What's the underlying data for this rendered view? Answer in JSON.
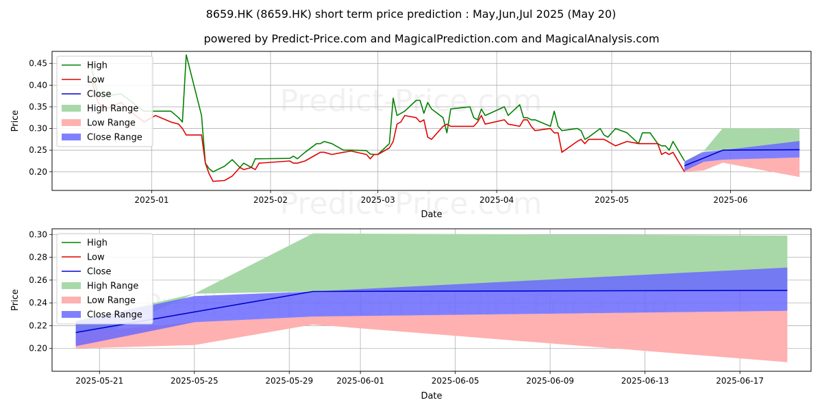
{
  "title": "8659.HK (8659.HK) short term price prediction : May,Jun,Jul 2025 (May 20)",
  "subtitle": "powered by Predict-Price.com and MagicalPrediction.com and MagicalAnalysis.com",
  "watermark": "Predict-Price.com",
  "colors": {
    "high": "#008000",
    "low": "#e00000",
    "close": "#0000cc",
    "high_range": "#a8d8a8",
    "low_range": "#ffb0b0",
    "close_range": "#6a6aff",
    "grid": "#b0b0b0"
  },
  "chart_data": [
    {
      "type": "line",
      "xlabel": "Date",
      "ylabel": "Price",
      "xlim": [
        "2024-12-06",
        "2025-06-22"
      ],
      "ylim": [
        0.157,
        0.478
      ],
      "x_ticks": [
        "2025-01",
        "2025-02",
        "2025-03",
        "2025-04",
        "2025-05",
        "2025-06"
      ],
      "y_ticks": [
        "0.20",
        "0.25",
        "0.30",
        "0.35",
        "0.40",
        "0.45"
      ],
      "grid": true,
      "legend_position": "top-left",
      "legend": [
        "High",
        "Low",
        "Close",
        "High Range",
        "Low Range",
        "Close Range"
      ],
      "series": [
        {
          "name": "High",
          "x": [
            "2024-12-16",
            "2024-12-18",
            "2024-12-20",
            "2024-12-24",
            "2024-12-27",
            "2024-12-30",
            "2025-01-02",
            "2025-01-06",
            "2025-01-08",
            "2025-01-09",
            "2025-01-10",
            "2025-01-14",
            "2025-01-15",
            "2025-01-16",
            "2025-01-17",
            "2025-01-20",
            "2025-01-22",
            "2025-01-24",
            "2025-01-25",
            "2025-01-27",
            "2025-01-28",
            "2025-01-29",
            "2025-02-06",
            "2025-02-07",
            "2025-02-08",
            "2025-02-10",
            "2025-02-13",
            "2025-02-14",
            "2025-02-15",
            "2025-02-17",
            "2025-02-20",
            "2025-02-22",
            "2025-02-26",
            "2025-02-27",
            "2025-02-28",
            "2025-03-01",
            "2025-03-04",
            "2025-03-05",
            "2025-03-06",
            "2025-03-07",
            "2025-03-08",
            "2025-03-11",
            "2025-03-12",
            "2025-03-13",
            "2025-03-14",
            "2025-03-15",
            "2025-03-18",
            "2025-03-19",
            "2025-03-20",
            "2025-03-25",
            "2025-03-26",
            "2025-03-27",
            "2025-03-28",
            "2025-03-29",
            "2025-04-03",
            "2025-04-04",
            "2025-04-07",
            "2025-04-08",
            "2025-04-09",
            "2025-04-10",
            "2025-04-11",
            "2025-04-15",
            "2025-04-16",
            "2025-04-17",
            "2025-04-18",
            "2025-04-22",
            "2025-04-23",
            "2025-04-24",
            "2025-04-25",
            "2025-04-28",
            "2025-04-29",
            "2025-04-30",
            "2025-05-02",
            "2025-05-05",
            "2025-05-08",
            "2025-05-09",
            "2025-05-11",
            "2025-05-13",
            "2025-05-14",
            "2025-05-15",
            "2025-05-16",
            "2025-05-17",
            "2025-05-20"
          ],
          "values": [
            0.45,
            0.375,
            0.375,
            0.38,
            0.36,
            0.34,
            0.34,
            0.34,
            0.325,
            0.315,
            0.47,
            0.33,
            0.22,
            0.207,
            0.2,
            0.213,
            0.228,
            0.21,
            0.22,
            0.21,
            0.23,
            0.23,
            0.231,
            0.236,
            0.23,
            0.245,
            0.265,
            0.265,
            0.27,
            0.265,
            0.25,
            0.25,
            0.249,
            0.241,
            0.24,
            0.24,
            0.265,
            0.37,
            0.33,
            0.335,
            0.34,
            0.365,
            0.365,
            0.335,
            0.36,
            0.345,
            0.325,
            0.29,
            0.345,
            0.35,
            0.325,
            0.32,
            0.345,
            0.33,
            0.35,
            0.33,
            0.355,
            0.325,
            0.325,
            0.32,
            0.32,
            0.305,
            0.34,
            0.305,
            0.295,
            0.3,
            0.295,
            0.275,
            0.28,
            0.3,
            0.285,
            0.28,
            0.3,
            0.29,
            0.265,
            0.29,
            0.29,
            0.265,
            0.26,
            0.26,
            0.25,
            0.27,
            0.225
          ]
        },
        {
          "name": "Low",
          "x": [
            "2024-12-16",
            "2024-12-18",
            "2024-12-20",
            "2024-12-24",
            "2024-12-27",
            "2024-12-30",
            "2025-01-02",
            "2025-01-06",
            "2025-01-08",
            "2025-01-09",
            "2025-01-10",
            "2025-01-14",
            "2025-01-15",
            "2025-01-16",
            "2025-01-17",
            "2025-01-20",
            "2025-01-22",
            "2025-01-24",
            "2025-01-25",
            "2025-01-27",
            "2025-01-28",
            "2025-01-29",
            "2025-02-06",
            "2025-02-07",
            "2025-02-08",
            "2025-02-10",
            "2025-02-13",
            "2025-02-14",
            "2025-02-15",
            "2025-02-17",
            "2025-02-20",
            "2025-02-22",
            "2025-02-26",
            "2025-02-27",
            "2025-02-28",
            "2025-03-01",
            "2025-03-04",
            "2025-03-05",
            "2025-03-06",
            "2025-03-07",
            "2025-03-08",
            "2025-03-11",
            "2025-03-12",
            "2025-03-13",
            "2025-03-14",
            "2025-03-15",
            "2025-03-18",
            "2025-03-19",
            "2025-03-20",
            "2025-03-25",
            "2025-03-26",
            "2025-03-27",
            "2025-03-28",
            "2025-03-29",
            "2025-04-03",
            "2025-04-04",
            "2025-04-07",
            "2025-04-08",
            "2025-04-09",
            "2025-04-10",
            "2025-04-11",
            "2025-04-15",
            "2025-04-16",
            "2025-04-17",
            "2025-04-18",
            "2025-04-22",
            "2025-04-23",
            "2025-04-24",
            "2025-04-25",
            "2025-04-28",
            "2025-04-29",
            "2025-04-30",
            "2025-05-02",
            "2025-05-05",
            "2025-05-08",
            "2025-05-09",
            "2025-05-11",
            "2025-05-13",
            "2025-05-14",
            "2025-05-15",
            "2025-05-16",
            "2025-05-17",
            "2025-05-20"
          ],
          "values": [
            0.42,
            0.36,
            0.345,
            0.36,
            0.335,
            0.315,
            0.33,
            0.315,
            0.31,
            0.3,
            0.285,
            0.285,
            0.22,
            0.195,
            0.178,
            0.18,
            0.19,
            0.21,
            0.205,
            0.21,
            0.205,
            0.22,
            0.225,
            0.22,
            0.22,
            0.225,
            0.24,
            0.245,
            0.245,
            0.24,
            0.245,
            0.248,
            0.24,
            0.23,
            0.24,
            0.24,
            0.255,
            0.27,
            0.31,
            0.315,
            0.33,
            0.325,
            0.315,
            0.32,
            0.28,
            0.275,
            0.305,
            0.31,
            0.305,
            0.305,
            0.305,
            0.315,
            0.33,
            0.31,
            0.32,
            0.31,
            0.305,
            0.32,
            0.32,
            0.305,
            0.295,
            0.3,
            0.29,
            0.29,
            0.245,
            0.27,
            0.275,
            0.265,
            0.275,
            0.275,
            0.275,
            0.27,
            0.26,
            0.27,
            0.265,
            0.265,
            0.265,
            0.265,
            0.24,
            0.245,
            0.24,
            0.245,
            0.2
          ]
        },
        {
          "name": "Close",
          "x": [
            "2025-05-20",
            "2025-05-30",
            "2025-06-19"
          ],
          "values": [
            0.214,
            0.25,
            0.251
          ]
        }
      ],
      "ranges": [
        {
          "name": "High Range",
          "x": [
            "2025-05-20",
            "2025-05-25",
            "2025-05-30",
            "2025-06-19"
          ],
          "upper": [
            0.224,
            0.248,
            0.301,
            0.299
          ],
          "lower": [
            0.202,
            0.248,
            0.25,
            0.251
          ]
        },
        {
          "name": "Low Range",
          "x": [
            "2025-05-20",
            "2025-05-25",
            "2025-05-30",
            "2025-06-19"
          ],
          "upper": [
            0.214,
            0.223,
            0.228,
            0.233
          ],
          "lower": [
            0.2,
            0.203,
            0.221,
            0.188
          ]
        },
        {
          "name": "Close Range",
          "x": [
            "2025-05-20",
            "2025-05-25",
            "2025-05-30",
            "2025-06-19"
          ],
          "upper": [
            0.224,
            0.246,
            0.25,
            0.271
          ],
          "lower": [
            0.202,
            0.223,
            0.228,
            0.233
          ]
        }
      ]
    },
    {
      "type": "line",
      "xlabel": "Date",
      "ylabel": "Price",
      "xlim": [
        "2025-05-19",
        "2025-06-20"
      ],
      "ylim": [
        0.18,
        0.305
      ],
      "x_ticks": [
        "2025-05-21",
        "2025-05-25",
        "2025-05-29",
        "2025-06-01",
        "2025-06-05",
        "2025-06-09",
        "2025-06-13",
        "2025-06-17"
      ],
      "y_ticks": [
        "0.20",
        "0.22",
        "0.24",
        "0.26",
        "0.28",
        "0.30"
      ],
      "grid": true,
      "legend_position": "top-left",
      "legend": [
        "High",
        "Low",
        "Close",
        "High Range",
        "Low Range",
        "Close Range"
      ],
      "series": [
        {
          "name": "Close",
          "x": [
            "2025-05-20",
            "2025-05-30",
            "2025-06-19"
          ],
          "values": [
            0.214,
            0.25,
            0.251
          ]
        }
      ],
      "ranges": [
        {
          "name": "High Range",
          "x": [
            "2025-05-20",
            "2025-05-25",
            "2025-05-30",
            "2025-06-19"
          ],
          "upper": [
            0.224,
            0.248,
            0.301,
            0.299
          ],
          "lower": [
            0.202,
            0.248,
            0.25,
            0.251
          ]
        },
        {
          "name": "Low Range",
          "x": [
            "2025-05-20",
            "2025-05-25",
            "2025-05-30",
            "2025-06-19"
          ],
          "upper": [
            0.214,
            0.223,
            0.228,
            0.233
          ],
          "lower": [
            0.2,
            0.203,
            0.221,
            0.188
          ]
        },
        {
          "name": "Close Range",
          "x": [
            "2025-05-20",
            "2025-05-25",
            "2025-05-30",
            "2025-06-19"
          ],
          "upper": [
            0.224,
            0.246,
            0.25,
            0.271
          ],
          "lower": [
            0.202,
            0.223,
            0.228,
            0.233
          ]
        }
      ]
    }
  ]
}
